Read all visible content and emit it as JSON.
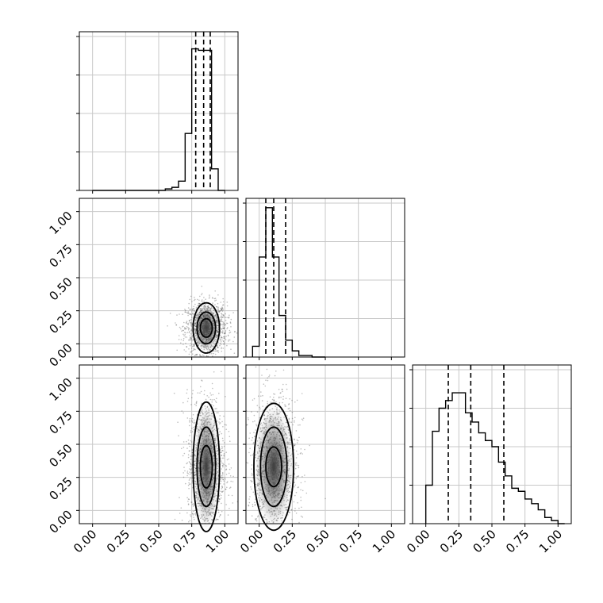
{
  "figure": {
    "type": "corner-plot",
    "dimensions": 3
  },
  "chart_data": [
    {
      "type": "histogram",
      "panel": "diag-0",
      "xlim": [
        -0.1,
        1.1
      ],
      "x_edges": [
        0.0,
        0.05,
        0.1,
        0.15,
        0.2,
        0.25,
        0.3,
        0.35,
        0.4,
        0.45,
        0.5,
        0.55,
        0.6,
        0.65,
        0.7,
        0.75,
        0.8,
        0.85,
        0.9,
        0.95,
        1.0
      ],
      "counts": [
        0,
        0,
        0,
        0,
        0,
        0,
        0,
        0,
        0,
        0,
        0,
        0.01,
        0.02,
        0.06,
        0.37,
        0.92,
        0.91,
        0.91,
        0.14,
        0.0
      ],
      "quantile_lines": [
        0.78,
        0.84,
        0.89
      ],
      "xticks": [
        0.0,
        0.25,
        0.5,
        0.75,
        1.0
      ],
      "show_tick_labels": false
    },
    {
      "type": "histogram",
      "panel": "diag-1",
      "xlim": [
        -0.1,
        1.1
      ],
      "x_edges": [
        -0.05,
        0.0,
        0.05,
        0.1,
        0.15,
        0.2,
        0.25,
        0.3,
        0.35,
        0.4,
        0.45,
        0.5
      ],
      "counts": [
        0.07,
        0.65,
        0.97,
        0.65,
        0.27,
        0.11,
        0.04,
        0.01,
        0.01,
        0.0,
        0.0
      ],
      "quantile_lines": [
        0.05,
        0.11,
        0.2
      ],
      "xticks": [
        0.0,
        0.25,
        0.5,
        0.75,
        1.0
      ],
      "show_tick_labels": false
    },
    {
      "type": "histogram",
      "panel": "diag-2",
      "xlim": [
        -0.1,
        1.1
      ],
      "x_edges": [
        0.0,
        0.05,
        0.1,
        0.15,
        0.2,
        0.25,
        0.3,
        0.35,
        0.4,
        0.45,
        0.5,
        0.55,
        0.6,
        0.65,
        0.7,
        0.75,
        0.8,
        0.85,
        0.9,
        0.95,
        1.0,
        1.05
      ],
      "counts": [
        0.25,
        0.6,
        0.75,
        0.8,
        0.85,
        0.85,
        0.72,
        0.66,
        0.59,
        0.54,
        0.5,
        0.4,
        0.31,
        0.23,
        0.21,
        0.16,
        0.13,
        0.09,
        0.04,
        0.02,
        0.0
      ],
      "quantile_lines": [
        0.17,
        0.34,
        0.59
      ],
      "xticks": [
        0.0,
        0.25,
        0.5,
        0.75,
        1.0
      ],
      "xtick_labels": [
        "0.00",
        "0.25",
        "0.50",
        "0.75",
        "1.00"
      ],
      "show_tick_labels": true
    },
    {
      "type": "scatter-contour",
      "panel": "row1-col0",
      "xlim": [
        -0.1,
        1.1
      ],
      "ylim": [
        -0.1,
        1.1
      ],
      "center": [
        0.86,
        0.12
      ],
      "spread": [
        0.06,
        0.08
      ],
      "contours": [
        {
          "level": 1,
          "rx": 0.1,
          "ry": 0.19
        },
        {
          "level": 2,
          "rx": 0.07,
          "ry": 0.12
        },
        {
          "level": 3,
          "rx": 0.045,
          "ry": 0.07
        }
      ],
      "yticks": [
        0.0,
        0.25,
        0.5,
        0.75,
        1.0
      ],
      "ytick_labels": [
        "0.00",
        "0.25",
        "0.50",
        "0.75",
        "1.00"
      ]
    },
    {
      "type": "scatter-contour",
      "panel": "row2-col0",
      "xlim": [
        -0.1,
        1.1
      ],
      "ylim": [
        -0.1,
        1.1
      ],
      "center": [
        0.86,
        0.33
      ],
      "spread": [
        0.055,
        0.22
      ],
      "contours": [
        {
          "level": 1,
          "rx": 0.1,
          "ry": 0.49
        },
        {
          "level": 2,
          "rx": 0.07,
          "ry": 0.3
        },
        {
          "level": 3,
          "rx": 0.045,
          "ry": 0.16
        }
      ],
      "xticks": [
        0.0,
        0.25,
        0.5,
        0.75,
        1.0
      ],
      "xtick_labels": [
        "0.00",
        "0.25",
        "0.50",
        "0.75",
        "1.00"
      ],
      "yticks": [
        0.0,
        0.25,
        0.5,
        0.75,
        1.0
      ],
      "ytick_labels": [
        "0.00",
        "0.25",
        "0.50",
        "0.75",
        "1.00"
      ]
    },
    {
      "type": "scatter-contour",
      "panel": "row2-col1",
      "xlim": [
        -0.1,
        1.1
      ],
      "ylim": [
        -0.1,
        1.1
      ],
      "center": [
        0.11,
        0.33
      ],
      "spread": [
        0.07,
        0.22
      ],
      "contours": [
        {
          "level": 1,
          "rx": 0.15,
          "ry": 0.48
        },
        {
          "level": 2,
          "rx": 0.1,
          "ry": 0.3
        },
        {
          "level": 3,
          "rx": 0.06,
          "ry": 0.15
        }
      ],
      "xticks": [
        0.0,
        0.25,
        0.5,
        0.75,
        1.0
      ],
      "xtick_labels": [
        "0.00",
        "0.25",
        "0.50",
        "0.75",
        "1.00"
      ]
    }
  ]
}
